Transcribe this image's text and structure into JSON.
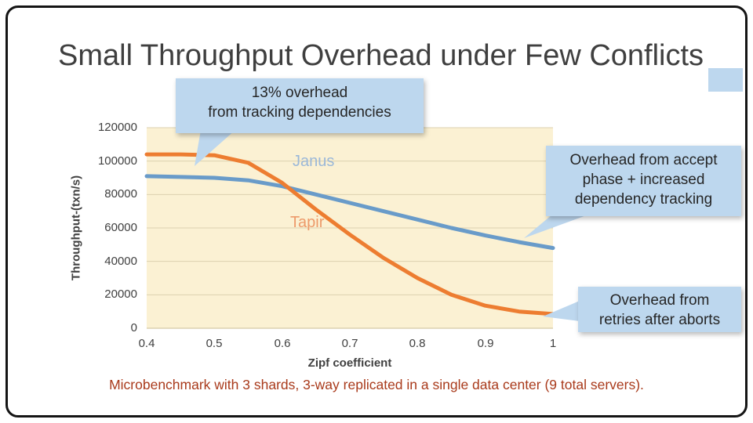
{
  "slide": {
    "title": "Small Throughput Overhead under Few Conflicts",
    "caption": "Microbenchmark with 3 shards, 3-way replicated in a single data center (9 total servers)."
  },
  "callouts": {
    "top": {
      "lines": [
        "13% overhead",
        "from tracking dependencies"
      ]
    },
    "right": {
      "lines": [
        "Overhead from accept",
        "phase + increased",
        "dependency tracking"
      ]
    },
    "bottom_right": {
      "lines": [
        "Overhead from",
        "retries after aborts"
      ]
    }
  },
  "colors": {
    "title": "#3F3F3F",
    "caption": "#A93A1B",
    "callout_fill": "#BDD7EE",
    "callout_text": "#262626",
    "plot_bg": "#FBF1D3",
    "gridline": "#DCD1B0",
    "axis_text": "#404040"
  },
  "chart_data": {
    "type": "line",
    "title": "",
    "xlabel": "Zipf coefficient",
    "ylabel": "Throughput-(txn/s)",
    "xlim": [
      0.4,
      1.0
    ],
    "ylim": [
      0,
      120000
    ],
    "grid": "horizontal",
    "legend": "inline-labels",
    "x": [
      0.4,
      0.45,
      0.5,
      0.55,
      0.6,
      0.65,
      0.7,
      0.75,
      0.8,
      0.85,
      0.9,
      0.95,
      1.0
    ],
    "series": [
      {
        "name": "Janus",
        "color": "#699BC9",
        "label_color": "#9BB8D8",
        "values": [
          91000,
          90500,
          90000,
          88500,
          85000,
          80000,
          75000,
          70000,
          65000,
          60000,
          55500,
          51500,
          48000
        ]
      },
      {
        "name": "Tapir",
        "color": "#ED7D31",
        "label_color": "#ED9A6A",
        "values": [
          104000,
          104000,
          103500,
          99000,
          87000,
          71000,
          56000,
          42000,
          30000,
          20000,
          13500,
          10000,
          8500
        ]
      }
    ],
    "xtick_labels": [
      "0.4",
      "0.5",
      "0.6",
      "0.7",
      "0.8",
      "0.9",
      "1"
    ],
    "ytick_labels": [
      "120000",
      "100000",
      "80000",
      "60000",
      "40000",
      "20000",
      "0"
    ]
  }
}
